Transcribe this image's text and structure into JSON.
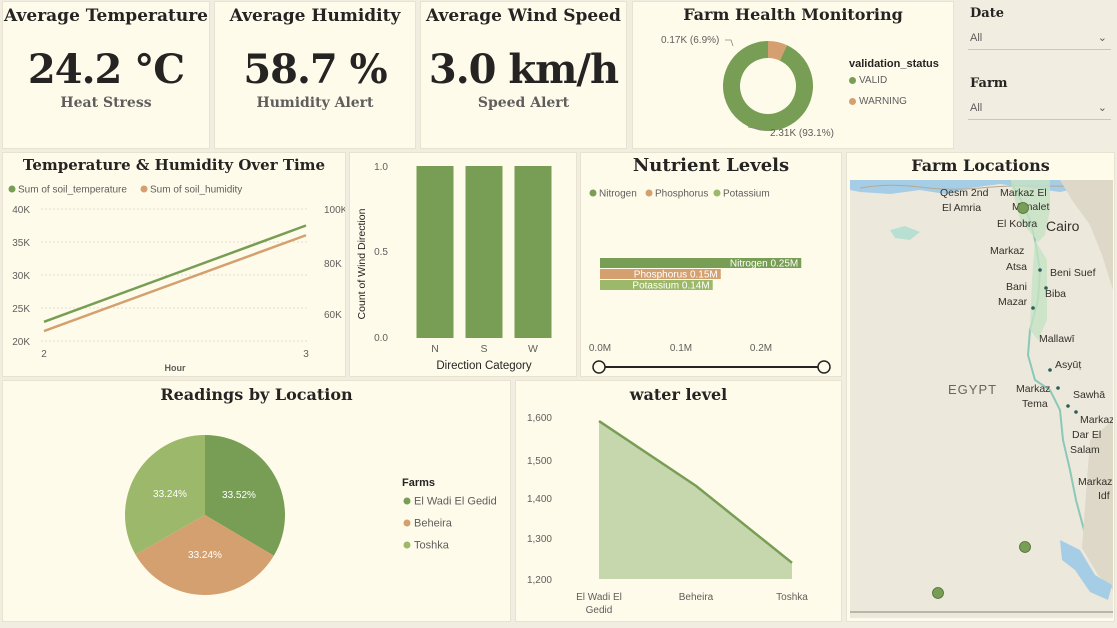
{
  "colors": {
    "green": "#789e55",
    "tan": "#d4a070",
    "light_green": "#9cb86a",
    "area_fill": "#c7d7ad",
    "bg": "#fefbeb"
  },
  "kpis": [
    {
      "title": "Average Temperature",
      "value": "24.2 °C",
      "label": "Heat Stress"
    },
    {
      "title": "Average Humidity",
      "value": "58.7 %",
      "label": "Humidity Alert"
    },
    {
      "title": "Average Wind Speed",
      "value": "3.0 km/h",
      "label": "Speed Alert"
    }
  ],
  "health": {
    "title": "Farm Health Monitoring",
    "legend_title": "validation_status",
    "slices": [
      {
        "name": "VALID",
        "value": "2.31K",
        "pct": 93.1,
        "label": "2.31K (93.1%)"
      },
      {
        "name": "WARNING",
        "value": "0.17K",
        "pct": 6.9,
        "label": "0.17K (6.9%)"
      }
    ]
  },
  "slicers": {
    "date": {
      "title": "Date",
      "value": "All"
    },
    "farm": {
      "title": "Farm",
      "value": "All"
    }
  },
  "temp_humidity": {
    "title": "Temperature & Humidity Over Time",
    "legend": [
      "Sum of soil_temperature",
      "Sum of soil_humidity"
    ],
    "x_label": "Hour",
    "x_ticks": [
      "2",
      "3"
    ],
    "y_left_ticks": [
      "40K",
      "35K",
      "30K",
      "25K",
      "20K"
    ],
    "y_right_ticks": [
      "100K",
      "80K",
      "60K"
    ]
  },
  "wind": {
    "y_label": "Count of Wind Direction",
    "x_label": "Direction Category",
    "y_ticks": [
      "1.0",
      "0.5",
      "0.0"
    ],
    "categories": [
      "N",
      "S",
      "W"
    ],
    "values": [
      1,
      1,
      1
    ]
  },
  "nutrients": {
    "title": "Nutrient Levels",
    "legend": [
      "Nitrogen",
      "Phosphorus",
      "Potassium"
    ],
    "bars": [
      {
        "name": "Nitrogen",
        "value": 0.25,
        "label": "Nitrogen 0.25M"
      },
      {
        "name": "Phosphorus",
        "value": 0.15,
        "label": "Phosphorus 0.15M"
      },
      {
        "name": "Potassium",
        "value": 0.14,
        "label": "Potassium 0.14M"
      }
    ],
    "x_ticks": [
      "0.0M",
      "0.1M",
      "0.2M"
    ]
  },
  "map": {
    "title": "Farm Locations",
    "places": [
      "Qesm 2nd",
      "El Amria",
      "Markaz El",
      "Manalet",
      "El Kobra",
      "Cairo",
      "Markaz",
      "Atsa",
      "Beni Suef",
      "Bani",
      "Mazar",
      "Biba",
      "Mallawī",
      "Asyūṭ",
      "Markaz",
      "Tema",
      "Sawhā",
      "Markaz",
      "Dar El",
      "Salam",
      "EGYPT",
      "Markaz",
      "Idf"
    ]
  },
  "readings": {
    "title": "Readings by Location",
    "legend_title": "Farms",
    "slices": [
      {
        "name": "El Wadi El Gedid",
        "pct": 33.52,
        "label": "33.52%"
      },
      {
        "name": "Beheira",
        "pct": 33.24,
        "label": "33.24%"
      },
      {
        "name": "Toshka",
        "pct": 33.24,
        "label": "33.24%"
      }
    ]
  },
  "water": {
    "title": "water level",
    "y_ticks": [
      "1,600",
      "1,500",
      "1,400",
      "1,300",
      "1,200"
    ],
    "x_ticks": [
      "El Wadi El Gedid",
      "Beheira",
      "Toshka"
    ],
    "values": [
      1590,
      1430,
      1240
    ]
  },
  "chart_data": [
    {
      "type": "pie",
      "title": "Farm Health Monitoring",
      "categories": [
        "VALID",
        "WARNING"
      ],
      "values": [
        2310,
        170
      ]
    },
    {
      "type": "line",
      "title": "Temperature & Humidity Over Time",
      "x": [
        2,
        3
      ],
      "xlabel": "Hour",
      "series": [
        {
          "name": "Sum of soil_temperature",
          "values": [
            22900,
            37500
          ]
        },
        {
          "name": "Sum of soil_humidity",
          "values": [
            53500,
            90000
          ]
        }
      ]
    },
    {
      "type": "bar",
      "categories": [
        "N",
        "S",
        "W"
      ],
      "values": [
        1,
        1,
        1
      ],
      "xlabel": "Direction Category",
      "ylabel": "Count of Wind Direction",
      "ylim": [
        0,
        1
      ]
    },
    {
      "type": "bar",
      "title": "Nutrient Levels",
      "categories": [
        "Nitrogen",
        "Phosphorus",
        "Potassium"
      ],
      "values": [
        0.25,
        0.15,
        0.14
      ]
    },
    {
      "type": "pie",
      "title": "Readings by Location",
      "categories": [
        "El Wadi El Gedid",
        "Beheira",
        "Toshka"
      ],
      "values": [
        33.52,
        33.24,
        33.24
      ]
    },
    {
      "type": "area",
      "title": "water level",
      "categories": [
        "El Wadi El Gedid",
        "Beheira",
        "Toshka"
      ],
      "values": [
        1590,
        1430,
        1240
      ],
      "ylim": [
        1200,
        1600
      ]
    }
  ]
}
